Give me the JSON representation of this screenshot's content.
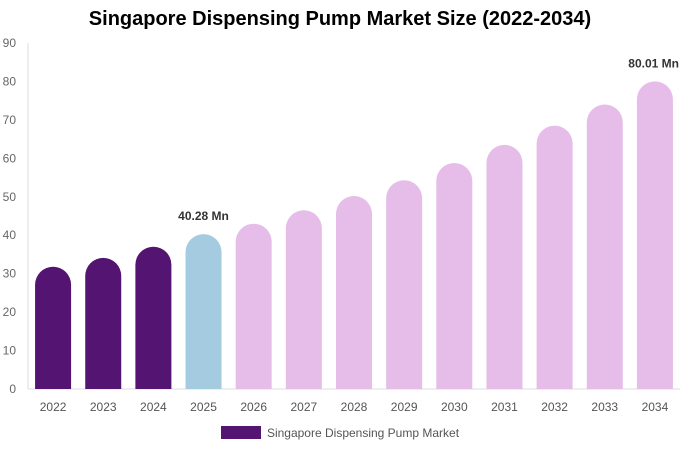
{
  "chart_data": {
    "type": "bar",
    "title": "Singapore Dispensing Pump Market Size (2022-2034)",
    "categories": [
      "2022",
      "2023",
      "2024",
      "2025",
      "2026",
      "2027",
      "2028",
      "2029",
      "2030",
      "2031",
      "2032",
      "2033",
      "2034"
    ],
    "series": [
      {
        "name": "Singapore Dispensing Pump Market",
        "values": [
          31.8,
          34.1,
          37.0,
          40.28,
          43.0,
          46.5,
          50.2,
          54.3,
          58.8,
          63.5,
          68.5,
          74.0,
          80.01
        ]
      }
    ],
    "bar_colors": [
      "#541471",
      "#541471",
      "#541471",
      "#a4cbdf",
      "#e6bde9",
      "#e6bde9",
      "#e6bde9",
      "#e6bde9",
      "#e6bde9",
      "#e6bde9",
      "#e6bde9",
      "#e6bde9",
      "#e6bde9"
    ],
    "annotations": [
      {
        "category": "2025",
        "text": "40.28 Mn"
      },
      {
        "category": "2034",
        "text": "80.01 Mn"
      }
    ],
    "yticks": [
      0,
      10,
      20,
      30,
      40,
      50,
      60,
      70,
      80,
      90
    ],
    "ylim": [
      0,
      90
    ],
    "grid": false,
    "legend_position": "bottom",
    "legend_color": "#541471",
    "xlabel": "",
    "ylabel": ""
  }
}
